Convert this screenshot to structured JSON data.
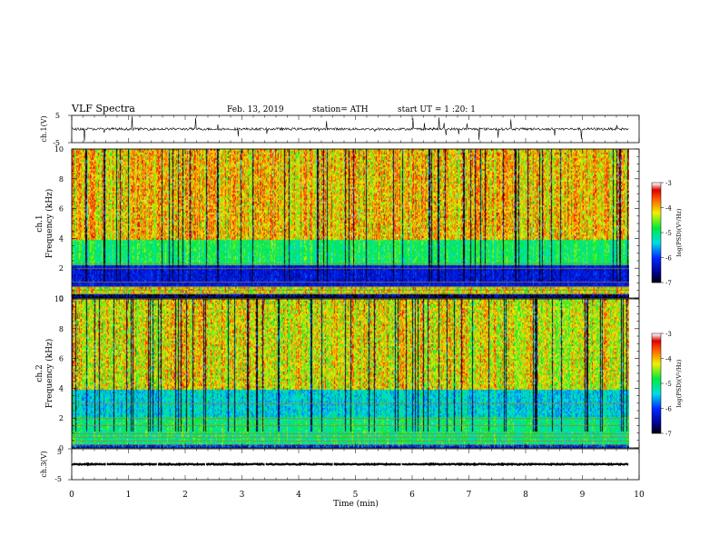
{
  "header": {
    "title": "VLF  Spectra",
    "date": "Feb. 13, 2019",
    "station": "station= ATH",
    "start": "start  UT  =    1  :20: 1"
  },
  "chart_data": [
    {
      "type": "line",
      "name": "ch1-waveform",
      "ylabel": "ch.1(V)",
      "ylim": [
        -5,
        5
      ],
      "yticks": [
        "5",
        "-5"
      ],
      "baseline": 0
    },
    {
      "type": "heatmap",
      "name": "ch1-spectrogram",
      "ylabel": "ch.1\nFrequency  (kHz)",
      "ylabel_line1": "ch.1",
      "ylabel_line2": "Frequency  (kHz)",
      "ylim": [
        0,
        10
      ],
      "yticks": [
        "0",
        "2",
        "4",
        "6",
        "8",
        "10"
      ],
      "colorbar": {
        "label": "log(PSD)(V²/Hz)",
        "range": [
          -7,
          -3
        ],
        "ticks": [
          "-3",
          "-4",
          "-5",
          "-6",
          "-7"
        ]
      }
    },
    {
      "type": "heatmap",
      "name": "ch2-spectrogram",
      "ylabel_line1": "ch.2",
      "ylabel_line2": "Frequency  (kHz)",
      "ylim": [
        0,
        10
      ],
      "yticks": [
        "0",
        "2",
        "4",
        "6",
        "8",
        "10"
      ],
      "colorbar": {
        "label": "log(PSD)(V²/Hz)",
        "range": [
          -7,
          -3
        ],
        "ticks": [
          "-3",
          "-4",
          "-5",
          "-6",
          "-7"
        ]
      }
    },
    {
      "type": "line",
      "name": "ch3-waveform",
      "ylabel": "ch.3(V)",
      "ylim": [
        -5,
        5
      ],
      "yticks": [
        "5",
        "-5"
      ],
      "baseline": 0
    }
  ],
  "xaxis": {
    "label": "Time  (min)",
    "xlim": [
      0,
      10
    ],
    "ticks": [
      "0",
      "1",
      "2",
      "3",
      "4",
      "5",
      "6",
      "7",
      "8",
      "9",
      "10"
    ],
    "data_end": 9.82
  }
}
